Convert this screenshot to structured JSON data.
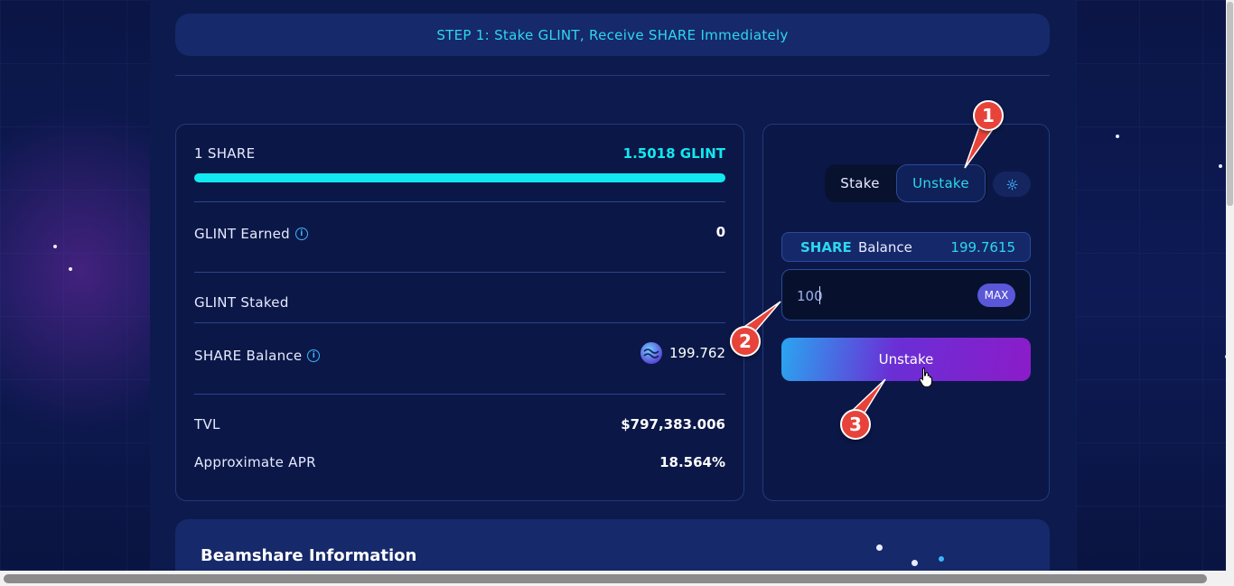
{
  "banner": {
    "text": "STEP 1: Stake GLINT, Receive SHARE Immediately"
  },
  "info": {
    "rate_label": "1 SHARE",
    "rate_value": "1.5018 GLINT",
    "rate_progress": 1.0,
    "earned_label": "GLINT Earned",
    "earned_value": "0",
    "staked_label": "GLINT Staked",
    "share_balance_label": "SHARE Balance",
    "share_balance_value": "199.762",
    "tvl_label": "TVL",
    "tvl_value": "$797,383.006",
    "apr_label": "Approximate APR",
    "apr_value": "18.564%"
  },
  "action": {
    "tab_stake": "Stake",
    "tab_unstake": "Unstake",
    "active_tab": "Unstake",
    "balance_symbol": "SHARE",
    "balance_label": "Balance",
    "balance_value": "199.7615",
    "amount_value": "100",
    "max_label": "MAX",
    "submit_label": "Unstake"
  },
  "info_section": {
    "title": "Beamshare Information"
  },
  "callouts": [
    "1",
    "2",
    "3"
  ],
  "colors": {
    "accent": "#2fd6ef",
    "progress": "#12e8f0",
    "callout": "#e8433a"
  },
  "icons": [
    "info-icon",
    "gear-icon",
    "share-token-icon",
    "pointer-cursor-icon"
  ]
}
